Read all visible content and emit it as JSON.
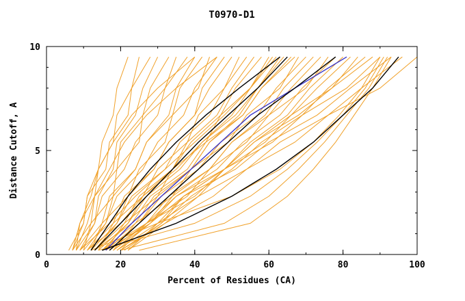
{
  "chart_data": {
    "type": "line",
    "title": "T0970-D1",
    "xlabel": "Percent of Residues (CA)",
    "ylabel": "Distance Cutoff, A",
    "xlim": [
      0,
      100
    ],
    "ylim": [
      0,
      10
    ],
    "x_ticks": [
      0,
      20,
      40,
      60,
      80,
      100
    ],
    "x_minor_step": 10,
    "y_ticks": [
      0,
      5,
      10
    ],
    "y_minor_step": 1,
    "grid": false,
    "legend": "none",
    "background": "#ffffff",
    "axis_color": "#000000",
    "y_levels": [
      0.2,
      1.5,
      2.8,
      4.1,
      5.4,
      6.7,
      8.0,
      9.5
    ],
    "series": [
      {
        "name": "model-ensemble-orange",
        "color": "#f0a028",
        "width": 1,
        "curves": [
          [
            7,
            10,
            11,
            14,
            15,
            18,
            19,
            22
          ],
          [
            8,
            9,
            13,
            14,
            18,
            19,
            23,
            25
          ],
          [
            6,
            10,
            11,
            16,
            17,
            22,
            23,
            28
          ],
          [
            9,
            13,
            14,
            18,
            19,
            24,
            26,
            30
          ],
          [
            7,
            12,
            13,
            19,
            20,
            26,
            28,
            33
          ],
          [
            10,
            12,
            18,
            19,
            25,
            26,
            32,
            35
          ],
          [
            8,
            13,
            15,
            21,
            24,
            30,
            32,
            38
          ],
          [
            11,
            16,
            18,
            24,
            27,
            33,
            35,
            40
          ],
          [
            9,
            15,
            17,
            24,
            27,
            34,
            36,
            42
          ],
          [
            12,
            15,
            22,
            25,
            32,
            34,
            41,
            44
          ],
          [
            10,
            16,
            19,
            26,
            30,
            37,
            40,
            46
          ],
          [
            13,
            19,
            22,
            29,
            33,
            40,
            42,
            48
          ],
          [
            11,
            18,
            21,
            29,
            33,
            40,
            44,
            50
          ],
          [
            14,
            18,
            26,
            30,
            38,
            41,
            48,
            52
          ],
          [
            12,
            19,
            23,
            32,
            36,
            44,
            48,
            54
          ],
          [
            15,
            22,
            26,
            34,
            38,
            46,
            50,
            56
          ],
          [
            13,
            21,
            25,
            34,
            39,
            47,
            51,
            58
          ],
          [
            16,
            21,
            30,
            34,
            43,
            47,
            55,
            60
          ],
          [
            14,
            22,
            27,
            36,
            42,
            50,
            55,
            62
          ],
          [
            17,
            25,
            30,
            39,
            44,
            52,
            57,
            64
          ],
          [
            15,
            24,
            29,
            39,
            44,
            53,
            58,
            66
          ],
          [
            18,
            24,
            34,
            39,
            49,
            54,
            63,
            68
          ],
          [
            16,
            25,
            31,
            41,
            47,
            57,
            62,
            70
          ],
          [
            19,
            28,
            34,
            44,
            50,
            59,
            64,
            72
          ],
          [
            17,
            27,
            33,
            44,
            50,
            60,
            66,
            74
          ],
          [
            20,
            27,
            38,
            44,
            54,
            60,
            70,
            76
          ],
          [
            18,
            28,
            35,
            46,
            53,
            63,
            69,
            78
          ],
          [
            21,
            31,
            37,
            48,
            55,
            65,
            71,
            80
          ],
          [
            19,
            30,
            37,
            48,
            56,
            66,
            73,
            82
          ],
          [
            22,
            30,
            41,
            48,
            59,
            66,
            77,
            84
          ],
          [
            20,
            31,
            39,
            50,
            58,
            69,
            76,
            86
          ],
          [
            15,
            27,
            35,
            48,
            56,
            68,
            77,
            88
          ],
          [
            18,
            27,
            40,
            48,
            61,
            69,
            81,
            90
          ],
          [
            16,
            28,
            37,
            51,
            60,
            73,
            82,
            93
          ],
          [
            20,
            32,
            41,
            54,
            63,
            76,
            85,
            96
          ],
          [
            22,
            32,
            45,
            54,
            67,
            76,
            90,
            100
          ],
          [
            25,
            55,
            65,
            72,
            78,
            83,
            88,
            93
          ],
          [
            20,
            48,
            60,
            68,
            75,
            81,
            87,
            92
          ],
          [
            14,
            40,
            55,
            65,
            73,
            80,
            86,
            91
          ],
          [
            12,
            30,
            50,
            63,
            72,
            79,
            85,
            90
          ],
          [
            7,
            9,
            12,
            14,
            18,
            23,
            30,
            40
          ],
          [
            8,
            11,
            13,
            17,
            21,
            27,
            35,
            46
          ],
          [
            13,
            23,
            28,
            38,
            43,
            53,
            58,
            67
          ],
          [
            11,
            20,
            26,
            35,
            42,
            51,
            57,
            63
          ],
          [
            9,
            17,
            24,
            32,
            40,
            48,
            55,
            61
          ]
        ]
      },
      {
        "name": "highlighted-model-blue",
        "color": "#3a35c8",
        "width": 1.4,
        "curves": [
          [
            16,
            23,
            31,
            39,
            47,
            55,
            67,
            81
          ]
        ]
      },
      {
        "name": "highlighted-models-black",
        "color": "#000000",
        "width": 1.4,
        "curves": [
          [
            12,
            17,
            22,
            28,
            35,
            43,
            52,
            63
          ],
          [
            13,
            20,
            27,
            34,
            41,
            49,
            57,
            65
          ],
          [
            17,
            25,
            33,
            41,
            49,
            57,
            67,
            78
          ],
          [
            15,
            35,
            50,
            62,
            72,
            80,
            88,
            95
          ]
        ]
      }
    ]
  }
}
